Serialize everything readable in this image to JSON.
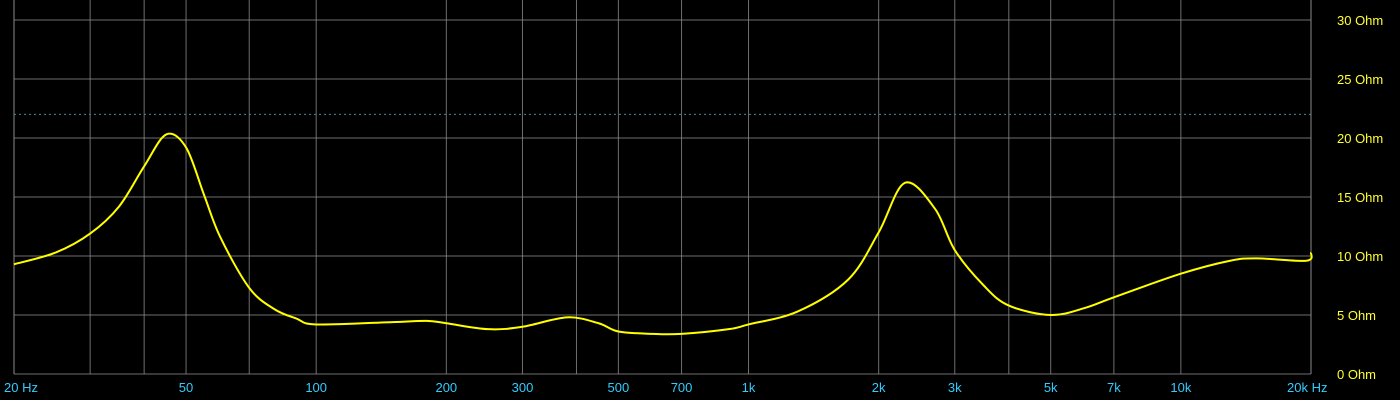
{
  "chart_data": {
    "type": "line",
    "title": "",
    "xlabel": "",
    "ylabel": "",
    "x_scale": "log",
    "xlim": [
      20,
      20000
    ],
    "ylim": [
      0,
      30
    ],
    "grid": true,
    "x_grid_values": [
      20,
      30,
      40,
      50,
      70,
      100,
      200,
      300,
      400,
      500,
      700,
      1000,
      2000,
      3000,
      4000,
      5000,
      7000,
      10000,
      20000
    ],
    "x_ticks": [
      {
        "value": 20,
        "label": "20 Hz"
      },
      {
        "value": 50,
        "label": "50"
      },
      {
        "value": 100,
        "label": "100"
      },
      {
        "value": 200,
        "label": "200"
      },
      {
        "value": 300,
        "label": "300"
      },
      {
        "value": 500,
        "label": "500"
      },
      {
        "value": 700,
        "label": "700"
      },
      {
        "value": 1000,
        "label": "1k"
      },
      {
        "value": 2000,
        "label": "2k"
      },
      {
        "value": 3000,
        "label": "3k"
      },
      {
        "value": 5000,
        "label": "5k"
      },
      {
        "value": 7000,
        "label": "7k"
      },
      {
        "value": 10000,
        "label": "10k"
      },
      {
        "value": 20000,
        "label": "20k Hz"
      }
    ],
    "y_ticks": [
      {
        "value": 0,
        "label": "0 Ohm"
      },
      {
        "value": 5,
        "label": "5 Ohm"
      },
      {
        "value": 10,
        "label": "10 Ohm"
      },
      {
        "value": 15,
        "label": "15 Ohm"
      },
      {
        "value": 20,
        "label": "20 Ohm"
      },
      {
        "value": 25,
        "label": "25 Ohm"
      },
      {
        "value": 30,
        "label": "30 Ohm"
      }
    ],
    "reference_line": {
      "value": 22,
      "style": "dotted"
    },
    "series": [
      {
        "color": "#ffff00",
        "x": [
          20,
          25,
          30,
          35,
          40,
          45,
          50,
          55,
          60,
          70,
          80,
          90,
          100,
          150,
          180,
          200,
          250,
          300,
          380,
          450,
          500,
          600,
          700,
          900,
          1000,
          1300,
          1700,
          2000,
          2300,
          2700,
          3000,
          3500,
          4000,
          5000,
          6000,
          7000,
          10000,
          13000,
          15000,
          19500,
          20000
        ],
        "y": [
          9.3,
          10.3,
          11.9,
          14.2,
          17.6,
          20.3,
          19.2,
          15.2,
          11.6,
          7.3,
          5.5,
          4.7,
          4.2,
          4.4,
          4.5,
          4.3,
          3.8,
          4.0,
          4.8,
          4.3,
          3.6,
          3.4,
          3.4,
          3.8,
          4.2,
          5.3,
          8.0,
          12.0,
          16.2,
          14.0,
          10.5,
          7.5,
          5.8,
          5.0,
          5.6,
          6.5,
          8.5,
          9.6,
          9.8,
          9.6,
          10.3
        ]
      }
    ],
    "colors": {
      "background": "#000000",
      "grid": "#8a8a8a",
      "curve": "#ffff00",
      "y_labels": "#ffff33",
      "x_labels": "#33ccff",
      "reference": "#4a8a8a"
    }
  }
}
